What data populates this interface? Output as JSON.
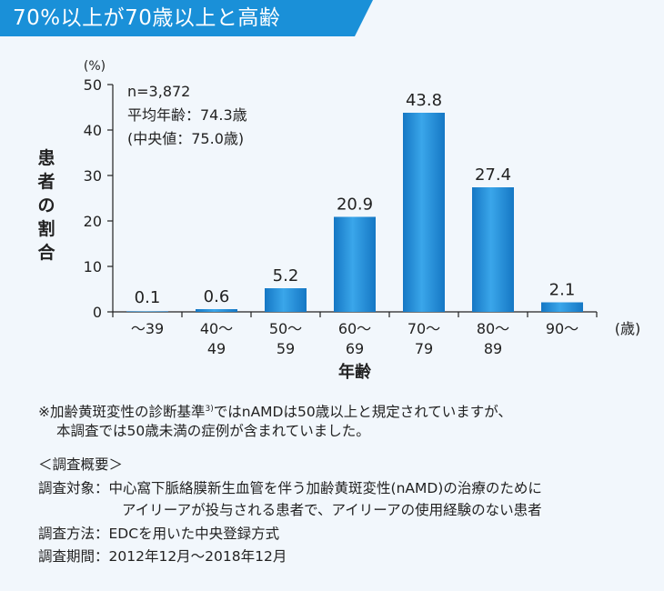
{
  "banner": {
    "title": "70%以上が70歳以上と高齢",
    "color": "#1a90d8"
  },
  "chart_data": {
    "type": "bar",
    "categories": [
      [
        "〜39"
      ],
      [
        "40〜",
        "49"
      ],
      [
        "50〜",
        "59"
      ],
      [
        "60〜",
        "69"
      ],
      [
        "70〜",
        "79"
      ],
      [
        "80〜",
        "89"
      ],
      [
        "90〜"
      ]
    ],
    "values": [
      0.1,
      0.6,
      5.2,
      20.9,
      43.8,
      27.4,
      2.1
    ],
    "value_labels": [
      "0.1",
      "0.6",
      "5.2",
      "20.9",
      "43.8",
      "27.4",
      "2.1"
    ],
    "ylim": [
      0,
      50
    ],
    "yticks": [
      "0",
      "10",
      "20",
      "30",
      "40",
      "50"
    ],
    "ylabel": "患者の割合",
    "yunit": "(%)",
    "xlabel": "年齢",
    "xunit": "(歳)",
    "bar_color": "#1f8fd6",
    "annotation": [
      "n=3,872",
      "平均年齢：74.3歳",
      "(中央値：75.0歳)"
    ]
  },
  "footnote": {
    "line1": "※加齢黄斑変性の診断基準",
    "ref": "3)",
    "line1b": "ではnAMDは50歳以上と規定されていますが、",
    "line2": "本調査では50歳未満の症例が含まれていました。"
  },
  "overview": {
    "heading": "＜調査概要＞",
    "target_label": "調査対象：",
    "target_line1": "中心窩下脈絡膜新生血管を伴う加齢黄斑変性(nAMD)の治療のために",
    "target_line2": "アイリーアが投与される患者で、アイリーアの使用経験のない患者",
    "method_label": "調査方法：",
    "method": "EDCを用いた中央登録方式",
    "period_label": "調査期間：",
    "period": "2012年12月〜2018年12月"
  }
}
